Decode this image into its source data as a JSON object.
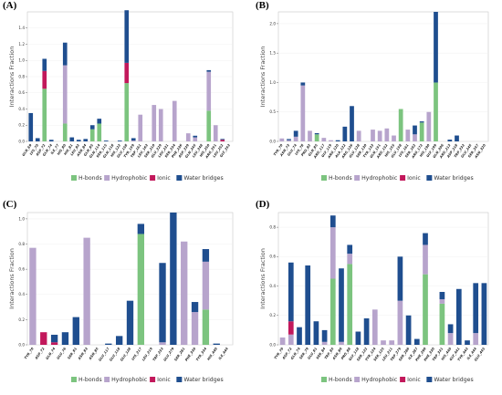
{
  "colors": {
    "hbonds": "#7cc47f",
    "hydrophobic": "#b7a4cc",
    "ionic": "#c2185b",
    "water": "#1f4e8f"
  },
  "chart_data": [
    {
      "label": "(A)",
      "type": "bar",
      "stacked": true,
      "ylabel": "Interactions Fraction",
      "ylim": [
        0,
        1.6
      ],
      "yticks": [
        0.0,
        0.2,
        0.4,
        0.6,
        0.8,
        1.0,
        1.2,
        1.4
      ],
      "categories": [
        "GLN_69",
        "LYS_70",
        "ASP_72",
        "GLN_74",
        "ILE_77",
        "HIS_80",
        "HIS_81",
        "LEU_82",
        "ASN_84",
        "GLN_85",
        "GLN_114",
        "SER_115",
        "GLN_118",
        "HIS_122",
        "GLU_158",
        "TYR_159",
        "TRP_161",
        "LEU_163",
        "SER_210",
        "GLU_229",
        "LEU_231",
        "SER_234",
        "PHE_236",
        "ASP_239",
        "GLN_245",
        "LEU_248",
        "HIS_250",
        "ARG_251",
        "LEU_252",
        "GLY_253"
      ],
      "series": [
        {
          "name": "H-bonds",
          "values": [
            0,
            0,
            0.65,
            0,
            0,
            0.22,
            0,
            0,
            0,
            0.15,
            0.22,
            0,
            0,
            0,
            0.72,
            0,
            0,
            0,
            0,
            0,
            0,
            0,
            0,
            0,
            0,
            0,
            0.38,
            0,
            0,
            0
          ]
        },
        {
          "name": "Hydrophobic",
          "values": [
            0,
            0,
            0,
            0,
            0,
            0.72,
            0,
            0,
            0,
            0,
            0,
            0,
            0,
            0,
            0,
            0.01,
            0.33,
            0,
            0.45,
            0.4,
            0,
            0.5,
            0,
            0.1,
            0.05,
            0,
            0.48,
            0.2,
            0,
            0
          ]
        },
        {
          "name": "Ionic",
          "values": [
            0,
            0,
            0.22,
            0,
            0,
            0,
            0,
            0,
            0,
            0,
            0,
            0,
            0,
            0,
            0.25,
            0,
            0,
            0,
            0,
            0,
            0,
            0,
            0,
            0,
            0,
            0,
            0,
            0,
            0.02,
            0
          ]
        },
        {
          "name": "Water bridges",
          "values": [
            0.35,
            0.04,
            0.15,
            0.02,
            0,
            0.28,
            0.05,
            0.02,
            0.03,
            0.05,
            0.06,
            0.01,
            0,
            0.01,
            0.65,
            0.03,
            0,
            0,
            0,
            0,
            0,
            0,
            0,
            0,
            0.02,
            0,
            0.02,
            0,
            0.01,
            0
          ]
        }
      ]
    },
    {
      "label": "(B)",
      "type": "bar",
      "stacked": true,
      "ylabel": "Interactions Fraction",
      "ylim": [
        0,
        2.2
      ],
      "yticks": [
        0.0,
        0.5,
        1.0,
        1.5,
        2.0
      ],
      "categories": [
        "TYR_70",
        "ASN_73",
        "GLU_74",
        "LYS_78",
        "PRO_82",
        "GLN_85",
        "ARG_117",
        "GLY_119",
        "ARG_120",
        "ALA_122",
        "ARG_126",
        "GLU_128",
        "SER_130",
        "TYR_133",
        "GLN_151",
        "ARG_152",
        "HIS_155",
        "GLU_158",
        "LYS_161",
        "SER_162",
        "ARG_172",
        "HIS_190",
        "GLY_199",
        "GLN_206",
        "ARG_213",
        "ASP_218",
        "TRP_232",
        "GLU_245",
        "SER_247",
        "ASN_320"
      ],
      "series": [
        {
          "name": "H-bonds",
          "values": [
            0,
            0,
            0,
            0,
            0,
            0.12,
            0,
            0,
            0,
            0,
            0,
            0,
            0,
            0,
            0,
            0,
            0,
            0.55,
            0,
            0,
            0.32,
            0,
            1.0,
            0,
            0,
            0,
            0,
            0,
            0,
            0
          ]
        },
        {
          "name": "Hydrophobic",
          "values": [
            0.05,
            0.02,
            0.08,
            0.95,
            0.18,
            0,
            0.06,
            0.02,
            0,
            0,
            0,
            0.18,
            0,
            0.2,
            0.18,
            0.22,
            0.1,
            0,
            0.2,
            0.12,
            0,
            0.5,
            0,
            0,
            0,
            0,
            0,
            0,
            0,
            0
          ]
        },
        {
          "name": "Ionic",
          "values": [
            0,
            0,
            0,
            0,
            0,
            0,
            0,
            0,
            0,
            0,
            0,
            0,
            0,
            0,
            0,
            0,
            0,
            0,
            0,
            0,
            0,
            0,
            0,
            0,
            0,
            0,
            0,
            0,
            0,
            0
          ]
        },
        {
          "name": "Water bridges",
          "values": [
            0,
            0.02,
            0.1,
            0.05,
            0,
            0.02,
            0,
            0,
            0.02,
            0.25,
            0.6,
            0,
            0,
            0,
            0,
            0,
            0,
            0,
            0,
            0.15,
            0.02,
            0,
            1.2,
            0,
            0.03,
            0.1,
            0,
            0,
            0,
            0
          ]
        }
      ]
    },
    {
      "label": "(C)",
      "type": "bar",
      "stacked": true,
      "ylabel": "Interactions Fraction",
      "ylim": [
        0,
        1.05
      ],
      "yticks": [
        0.0,
        0.2,
        0.4,
        0.6,
        0.8,
        1.0
      ],
      "categories": [
        "TYR_70",
        "ASP_72",
        "GLN_74",
        "GLU_76",
        "SER_81",
        "ASN_83",
        "ASN_85",
        "GLU_117",
        "GLU_118",
        "GLU_128",
        "LYS_217",
        "LEU_219",
        "TRP_233",
        "GLU_279",
        "SER_281",
        "PHE_330",
        "TYR_334",
        "HIS_440",
        "ILE_444"
      ],
      "series": [
        {
          "name": "H-bonds",
          "values": [
            0,
            0,
            0,
            0,
            0,
            0,
            0,
            0,
            0,
            0,
            0.88,
            0,
            0,
            0,
            0,
            0,
            0.28,
            0,
            0
          ]
        },
        {
          "name": "Hydrophobic",
          "values": [
            0.77,
            0,
            0,
            0,
            0,
            0.85,
            0,
            0,
            0,
            0,
            0,
            0,
            0.02,
            0,
            0.82,
            0.26,
            0.38,
            0,
            0
          ]
        },
        {
          "name": "Ionic",
          "values": [
            0,
            0.1,
            0.02,
            0,
            0,
            0,
            0,
            0,
            0,
            0,
            0,
            0,
            0,
            0,
            0,
            0,
            0,
            0,
            0
          ]
        },
        {
          "name": "Water bridges",
          "values": [
            0,
            0,
            0.06,
            0.1,
            0.22,
            0,
            0,
            0.01,
            0.07,
            0.35,
            0.08,
            0,
            0.63,
            1.05,
            0,
            0.08,
            0.1,
            0.01,
            0
          ]
        }
      ]
    },
    {
      "label": "(D)",
      "type": "bar",
      "stacked": true,
      "ylabel": "Interactions Fraction",
      "ylim": [
        0,
        0.9
      ],
      "yticks": [
        0.0,
        0.2,
        0.4,
        0.6,
        0.8
      ],
      "categories": [
        "TYR_70",
        "ASP_72",
        "GLN_74",
        "SER_79",
        "GLU_81",
        "SER_84",
        "TRP_85",
        "ASN_86",
        "PRO_88",
        "GLY_118",
        "SER_122",
        "TYR_124",
        "SER_125",
        "LEU_211",
        "TRP_279",
        "SER_286",
        "ILE_287",
        "PHE_290",
        "PHE_330",
        "TRP_331",
        "HIS_440",
        "GLY_441",
        "TYR_442",
        "ILE_444",
        "GLU_445"
      ],
      "series": [
        {
          "name": "H-bonds",
          "values": [
            0,
            0,
            0,
            0,
            0,
            0,
            0.45,
            0,
            0.55,
            0,
            0,
            0,
            0,
            0,
            0,
            0,
            0,
            0.48,
            0,
            0.28,
            0,
            0,
            0,
            0,
            0
          ]
        },
        {
          "name": "Hydrophobic",
          "values": [
            0.05,
            0.07,
            0,
            0,
            0,
            0.02,
            0.35,
            0.02,
            0.07,
            0,
            0,
            0.24,
            0.03,
            0.03,
            0.3,
            0,
            0,
            0.2,
            0,
            0.03,
            0.08,
            0,
            0,
            0.08,
            0
          ]
        },
        {
          "name": "Ionic",
          "values": [
            0,
            0.09,
            0,
            0,
            0,
            0,
            0,
            0,
            0,
            0,
            0,
            0,
            0,
            0,
            0,
            0,
            0,
            0,
            0,
            0,
            0,
            0,
            0,
            0,
            0
          ]
        },
        {
          "name": "Water bridges",
          "values": [
            0,
            0.4,
            0.12,
            0.54,
            0.16,
            0.08,
            0.08,
            0.5,
            0.06,
            0.09,
            0.18,
            0,
            0,
            0,
            0.3,
            0.2,
            0.04,
            0.08,
            0,
            0.05,
            0.06,
            0.38,
            0.03,
            0.34,
            0.42
          ]
        }
      ]
    }
  ],
  "legend": {
    "hbonds": "H-bonds",
    "hydrophobic": "Hydrophobic",
    "ionic": "Ionic",
    "water": "Water bridges"
  }
}
